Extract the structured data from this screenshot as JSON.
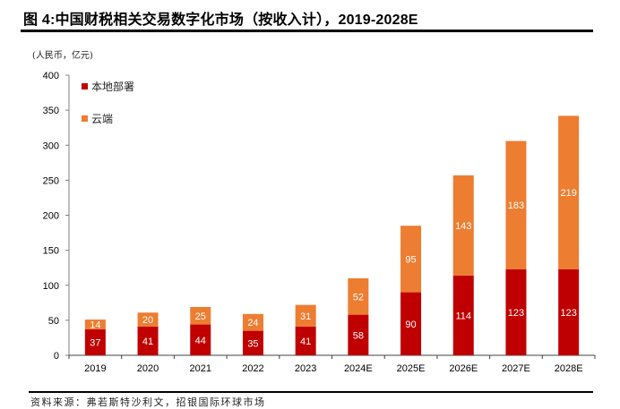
{
  "header": {
    "title": "图 4:中国财税相关交易数字化市场（按收入计），2019-2028E"
  },
  "unit_label": "(人民币，亿元)",
  "footer": {
    "source": "资料来源：弗若斯特沙利文，招银国际环球市场"
  },
  "chart_data": {
    "type": "bar",
    "stacked": true,
    "title": "中国财税相关交易数字化市场（按收入计），2019-2028E",
    "xlabel": "",
    "ylabel": "(人民币，亿元)",
    "ylim": [
      0,
      400
    ],
    "yticks": [
      0,
      50,
      100,
      150,
      200,
      250,
      300,
      350,
      400
    ],
    "grid": false,
    "legend_position": "top-left",
    "categories": [
      "2019",
      "2020",
      "2021",
      "2022",
      "2023",
      "2024E",
      "2025E",
      "2026E",
      "2027E",
      "2028E"
    ],
    "series": [
      {
        "name": "本地部署",
        "color": "#C00000",
        "values": [
          37,
          41,
          44,
          35,
          41,
          58,
          90,
          114,
          123,
          123
        ]
      },
      {
        "name": "云端",
        "color": "#ED7D31",
        "values": [
          14,
          20,
          25,
          24,
          31,
          52,
          95,
          143,
          183,
          219
        ]
      }
    ]
  }
}
